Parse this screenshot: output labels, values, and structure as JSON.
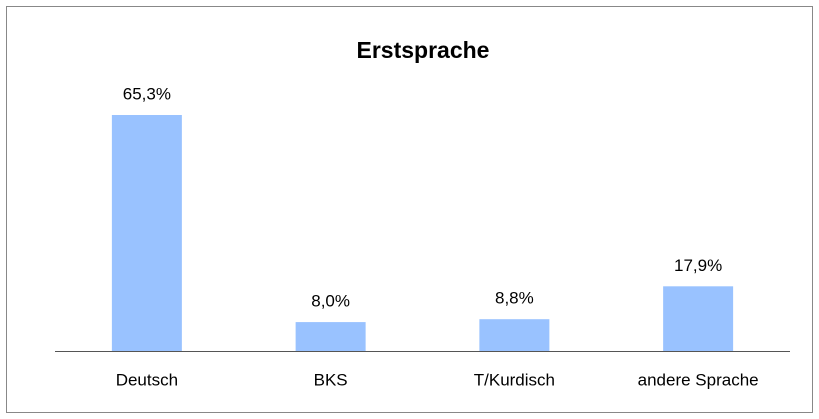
{
  "chart_data": {
    "type": "bar",
    "title": "Erstsprache",
    "categories": [
      "Deutsch",
      "BKS",
      "T/Kurdisch",
      "andere Sprache"
    ],
    "values": [
      65.3,
      8.0,
      8.8,
      17.9
    ],
    "value_labels": [
      "65,3%",
      "8,0%",
      "8,8%",
      "17,9%"
    ],
    "color": "#99c2ff"
  }
}
